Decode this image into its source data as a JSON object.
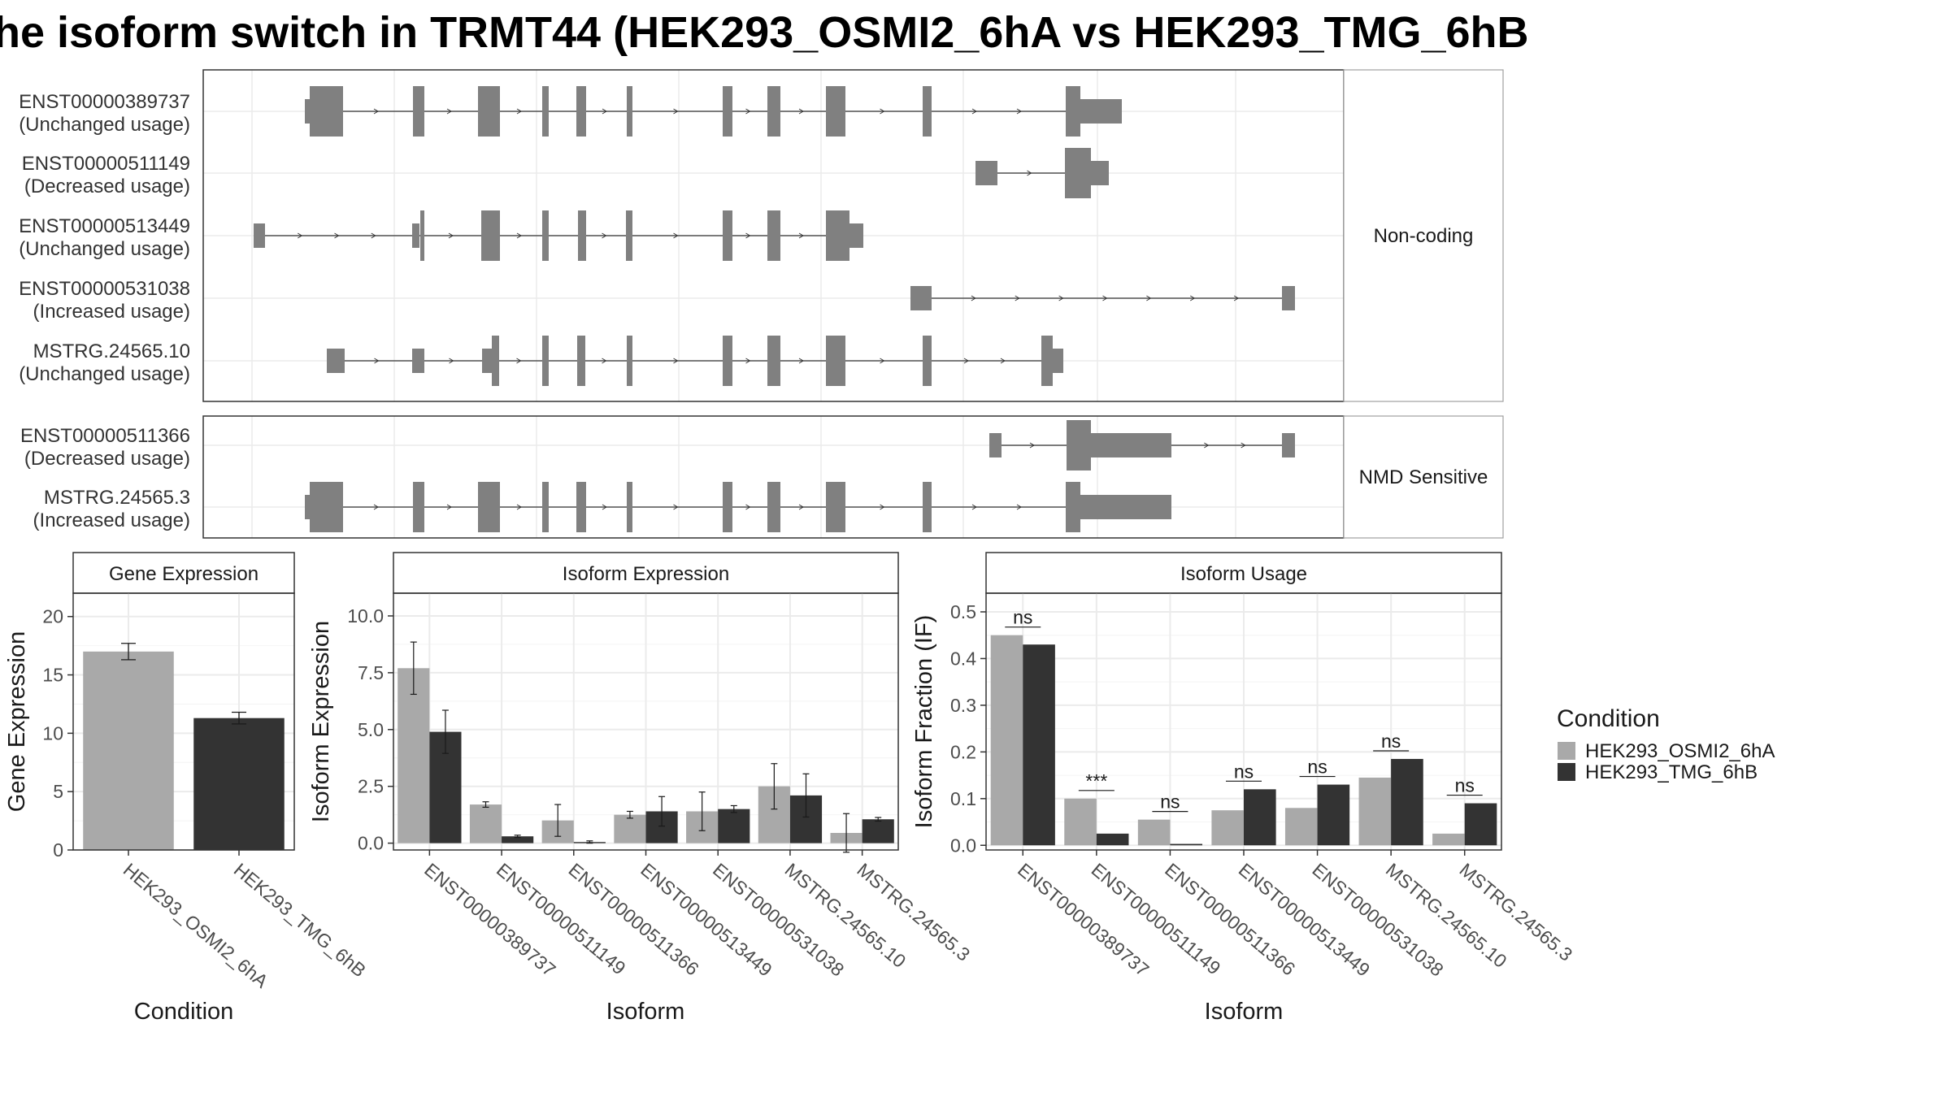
{
  "title": "he isoform switch in TRMT44 (HEK293_OSMI2_6hA vs HEK293_TMG_6hB",
  "colors": {
    "condition_a": "#a9a9a9",
    "condition_b": "#333333",
    "exon": "#808080",
    "grid": "#ebebeb",
    "strip_fill": "#ffffff",
    "panel_border": "#333333"
  },
  "structure_panel": {
    "groups": [
      {
        "label": "Non-coding",
        "tracks": [
          {
            "isoform": "ENST00000389737",
            "usage": "(Unchanged usage)"
          },
          {
            "isoform": "ENST00000511149",
            "usage": "(Decreased usage)"
          },
          {
            "isoform": "ENST00000513449",
            "usage": "(Unchanged usage)"
          },
          {
            "isoform": "ENST00000531038",
            "usage": "(Increased usage)"
          },
          {
            "isoform": "MSTRG.24565.10",
            "usage": "(Unchanged usage)"
          }
        ]
      },
      {
        "label": "NMD Sensitive",
        "tracks": [
          {
            "isoform": "ENST00000511366",
            "usage": "(Decreased usage)"
          },
          {
            "isoform": "MSTRG.24565.3",
            "usage": "(Increased usage)"
          }
        ]
      }
    ]
  },
  "legend": {
    "title": "Condition",
    "items": [
      "HEK293_OSMI2_6hA",
      "HEK293_TMG_6hB"
    ]
  },
  "chart_data": [
    {
      "type": "bar",
      "title": "Gene Expression",
      "xlabel": "Condition",
      "ylabel": "Gene Expression",
      "categories": [
        "HEK293_OSMI2_6hA",
        "HEK293_TMG_6hB"
      ],
      "values": [
        17.0,
        11.3
      ],
      "errors": [
        0.7,
        0.5
      ],
      "ylim": [
        0,
        22
      ],
      "yticks": [
        0,
        5,
        10,
        15,
        20
      ],
      "ytick_labels": [
        "0",
        "5",
        "10",
        "15",
        "20"
      ],
      "grid": true
    },
    {
      "type": "bar",
      "title": "Isoform Expression",
      "xlabel": "Isoform",
      "ylabel": "Isoform Expression",
      "categories": [
        "ENST00000389737",
        "ENST00000511149",
        "ENST00000511366",
        "ENST00000513449",
        "ENST00000531038",
        "MSTRG.24565.10",
        "MSTRG.24565.3"
      ],
      "series": [
        {
          "name": "HEK293_OSMI2_6hA",
          "values": [
            7.7,
            1.7,
            1.0,
            1.25,
            1.4,
            2.5,
            0.45
          ],
          "errors": [
            1.15,
            0.12,
            0.7,
            0.15,
            0.85,
            1.0,
            0.85
          ]
        },
        {
          "name": "HEK293_TMG_6hB",
          "values": [
            4.9,
            0.3,
            0.05,
            1.4,
            1.5,
            2.1,
            1.05
          ],
          "errors": [
            0.95,
            0.05,
            0.05,
            0.65,
            0.15,
            0.95,
            0.08
          ]
        }
      ],
      "ylim": [
        -0.3,
        11.0
      ],
      "yticks": [
        0,
        2.5,
        5,
        7.5,
        10
      ],
      "ytick_labels": [
        "0.0",
        "2.5",
        "5.0",
        "7.5",
        "10.0"
      ],
      "grid": true
    },
    {
      "type": "bar",
      "title": "Isoform Usage",
      "xlabel": "Isoform",
      "ylabel": "Isoform Fraction (IF)",
      "categories": [
        "ENST00000389737",
        "ENST00000511149",
        "ENST00000511366",
        "ENST00000513449",
        "ENST00000531038",
        "MSTRG.24565.10",
        "MSTRG.24565.3"
      ],
      "series": [
        {
          "name": "HEK293_OSMI2_6hA",
          "values": [
            0.45,
            0.1,
            0.055,
            0.075,
            0.08,
            0.145,
            0.025
          ]
        },
        {
          "name": "HEK293_TMG_6hB",
          "values": [
            0.43,
            0.025,
            0.003,
            0.12,
            0.13,
            0.185,
            0.09
          ]
        }
      ],
      "significance": [
        "ns",
        "***",
        "ns",
        "ns",
        "ns",
        "ns",
        "ns"
      ],
      "ylim": [
        -0.01,
        0.54
      ],
      "yticks": [
        0,
        0.1,
        0.2,
        0.3,
        0.4,
        0.5
      ],
      "ytick_labels": [
        "0.0",
        "0.1",
        "0.2",
        "0.3",
        "0.4",
        "0.5"
      ],
      "grid": true
    }
  ]
}
